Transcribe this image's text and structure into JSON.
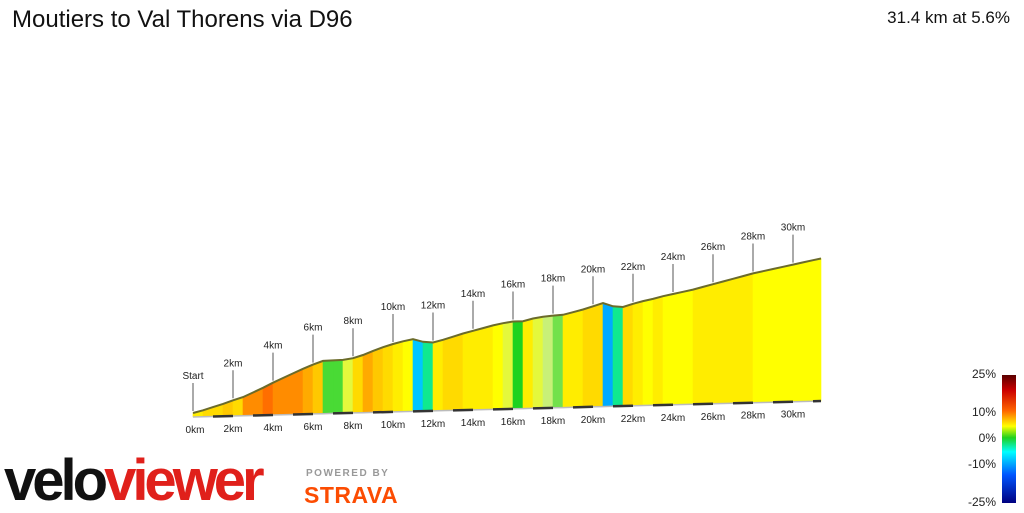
{
  "title": "Moutiers to Val Thorens via D96",
  "summary": "31.4 km at 5.6%",
  "brand": {
    "velo": "velo",
    "viewer": "viewer",
    "powered_by": "POWERED BY",
    "strava": "STRAVA"
  },
  "legend": {
    "labels": [
      "25%",
      "10%",
      "0%",
      "-10%",
      "-25%"
    ],
    "values": [
      25,
      10,
      0,
      -10,
      -25
    ]
  },
  "chart_data": {
    "type": "area",
    "title": "Moutiers to Val Thorens via D96",
    "xlim": [
      0,
      31.4
    ],
    "x_tick_labels": [
      "0km",
      "2km",
      "4km",
      "6km",
      "8km",
      "10km",
      "12km",
      "14km",
      "16km",
      "18km",
      "20km",
      "22km",
      "24km",
      "26km",
      "28km",
      "30km"
    ],
    "x_ticks": [
      0,
      2,
      4,
      6,
      8,
      10,
      12,
      14,
      16,
      18,
      20,
      22,
      24,
      26,
      28,
      30
    ],
    "marker_labels": [
      "Start",
      "2km",
      "4km",
      "6km",
      "8km",
      "10km",
      "12km",
      "14km",
      "16km",
      "18km",
      "20km",
      "22km",
      "24km",
      "26km",
      "28km",
      "30km"
    ],
    "profile": {
      "distance_km": [
        0,
        0.5,
        1.0,
        1.5,
        2.0,
        2.5,
        3.0,
        3.5,
        4.0,
        4.5,
        5.0,
        5.5,
        6.0,
        6.5,
        7.0,
        7.5,
        8.0,
        8.5,
        9.0,
        9.5,
        10.0,
        10.5,
        11.0,
        11.5,
        12.0,
        12.5,
        13.0,
        13.5,
        14.0,
        14.5,
        15.0,
        15.5,
        16.0,
        16.5,
        17.0,
        17.5,
        18.0,
        18.5,
        19.0,
        19.5,
        20.0,
        20.5,
        21.0,
        21.5,
        22.0,
        22.5,
        23.0,
        23.5,
        24.0,
        24.5,
        25.0,
        25.5,
        26.0,
        26.5,
        27.0,
        27.5,
        28.0,
        28.5,
        29.0,
        29.5,
        30.0,
        30.5,
        31.0,
        31.4
      ],
      "gradient_pct": [
        5,
        5,
        6,
        6,
        7,
        6,
        9,
        9,
        10,
        9,
        9,
        9,
        8,
        7,
        0.5,
        0.5,
        3,
        6,
        8,
        7,
        6,
        5,
        4,
        -6,
        -2,
        5,
        6,
        6,
        5,
        5,
        5,
        4,
        3,
        0,
        5,
        3,
        2,
        1,
        5,
        5,
        6,
        6,
        -7,
        -2,
        6,
        5,
        4,
        5,
        4,
        4,
        4,
        5,
        5,
        5,
        5,
        5,
        5,
        4,
        4,
        4,
        4,
        4,
        4,
        4
      ]
    }
  }
}
